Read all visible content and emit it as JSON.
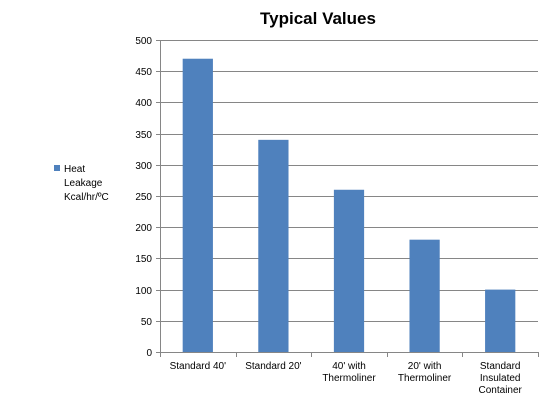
{
  "chart_data": {
    "type": "bar",
    "title": "Typical Values",
    "xlabel": "",
    "ylabel": "",
    "categories": [
      [
        "Standard 40'"
      ],
      [
        "Standard 20'"
      ],
      [
        "40' with",
        "Thermoliner"
      ],
      [
        "20' with",
        "Thermoliner"
      ],
      [
        "Standard",
        "Insulated",
        "Container"
      ]
    ],
    "series": [
      {
        "name": [
          "Heat",
          "Leakage",
          "Kcal/hr/ºC"
        ],
        "color": "#4f81bd",
        "values": [
          470,
          340,
          260,
          180,
          100
        ]
      }
    ],
    "ylim": [
      0,
      500
    ],
    "yticks": [
      0,
      50,
      100,
      150,
      200,
      250,
      300,
      350,
      400,
      450,
      500
    ],
    "grid": true,
    "legend_position": "left"
  }
}
